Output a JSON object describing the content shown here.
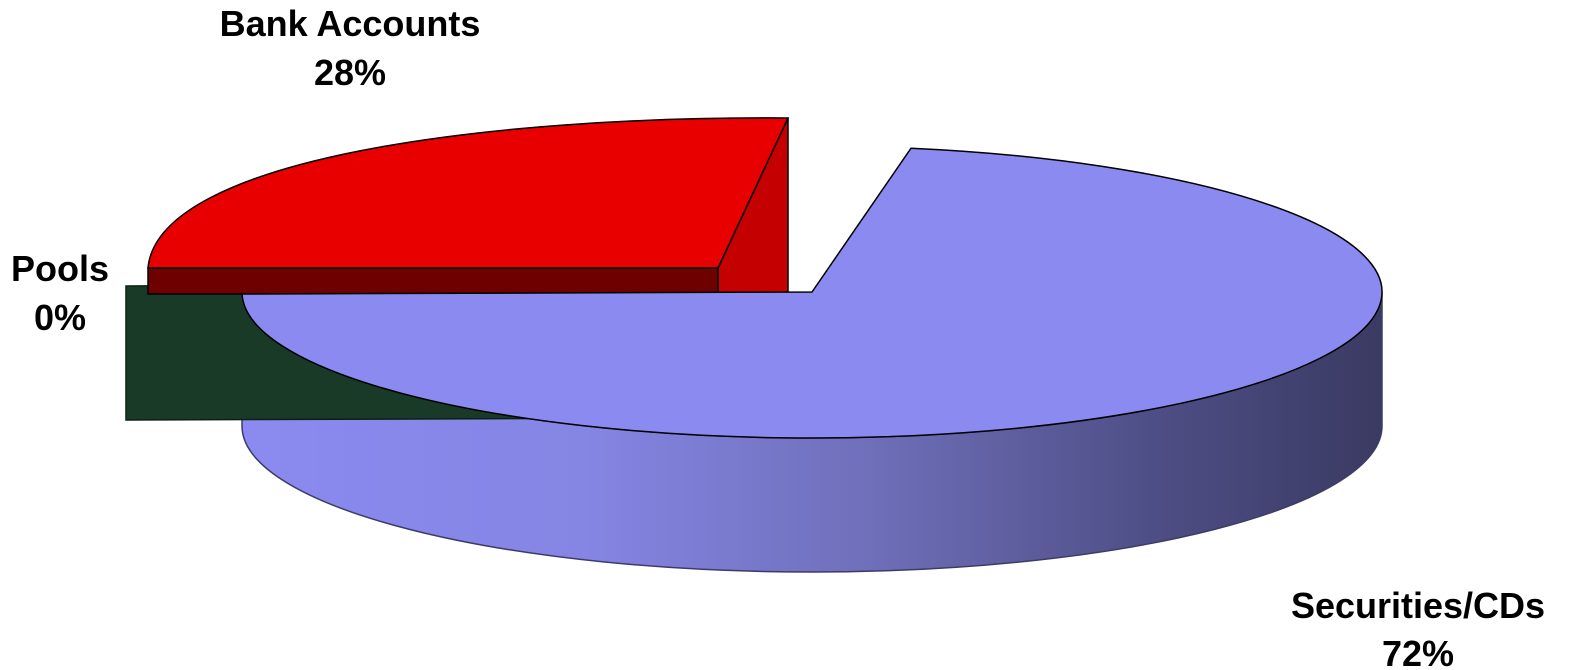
{
  "chart_data": {
    "type": "pie",
    "style": "3d-exploded",
    "title": "",
    "slices": [
      {
        "name": "Bank Accounts",
        "value": 28,
        "label": "28%",
        "color": "#e80000",
        "side_color": "#c40000",
        "edge_color": "#6e0000"
      },
      {
        "name": "Pools",
        "value": 0,
        "label": "0%",
        "color": "#1a3a28",
        "side_color": "#1a3a28",
        "edge_color": "#0c1f14"
      },
      {
        "name": "Securities/CDs",
        "value": 72,
        "label": "72%",
        "color": "#8a8af0",
        "side_color": "#8a8af0",
        "edge_color": "#3c3c68"
      }
    ],
    "legend": "none"
  }
}
